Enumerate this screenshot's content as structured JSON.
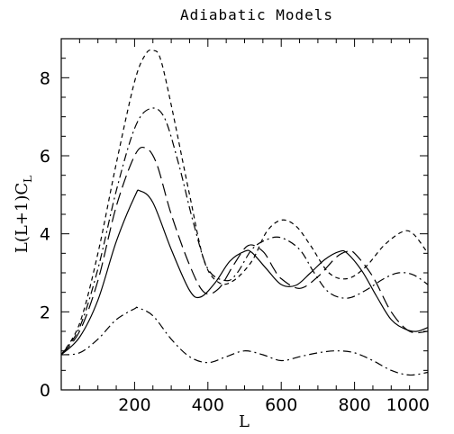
{
  "chart_data": {
    "type": "line",
    "title": "Adiabatic Models",
    "xlabel": "L",
    "ylabel": "L(L+1)C",
    "ylabel_sub": "L",
    "xlim": [
      0,
      1000
    ],
    "ylim": [
      0,
      9
    ],
    "xticks": [
      {
        "v": 200,
        "label": "200"
      },
      {
        "v": 400,
        "label": "400"
      },
      {
        "v": 600,
        "label": "600"
      },
      {
        "v": 800,
        "label": "800"
      },
      {
        "v": 1000,
        "label": "1000"
      }
    ],
    "yticks": [
      {
        "v": 0,
        "label": "0"
      },
      {
        "v": 2,
        "label": "2"
      },
      {
        "v": 4,
        "label": "4"
      },
      {
        "v": 6,
        "label": "6"
      },
      {
        "v": 8,
        "label": "8"
      }
    ],
    "grid": false,
    "legend": "none",
    "series": [
      {
        "dash": "solid",
        "x": [
          0,
          50,
          100,
          150,
          200,
          215,
          250,
          300,
          350,
          380,
          420,
          460,
          500,
          520,
          560,
          600,
          640,
          680,
          720,
          760,
          780,
          820,
          860,
          900,
          940,
          970,
          1000
        ],
        "y": [
          0.9,
          1.35,
          2.3,
          3.8,
          4.95,
          5.1,
          4.8,
          3.6,
          2.55,
          2.38,
          2.75,
          3.3,
          3.55,
          3.52,
          3.1,
          2.7,
          2.68,
          3.0,
          3.35,
          3.55,
          3.5,
          3.05,
          2.4,
          1.8,
          1.55,
          1.5,
          1.6
        ]
      },
      {
        "dash": "long-dash",
        "x": [
          0,
          50,
          100,
          150,
          200,
          230,
          260,
          300,
          350,
          390,
          430,
          470,
          510,
          550,
          580,
          600,
          650,
          700,
          750,
          780,
          800,
          850,
          900,
          950,
          1000
        ],
        "y": [
          0.9,
          1.5,
          2.8,
          4.7,
          6.0,
          6.2,
          5.8,
          4.5,
          3.2,
          2.5,
          2.6,
          3.2,
          3.7,
          3.55,
          3.1,
          2.85,
          2.6,
          2.9,
          3.4,
          3.55,
          3.5,
          2.9,
          2.0,
          1.5,
          1.5
        ]
      },
      {
        "dash": "dash-dot",
        "x": [
          0,
          50,
          100,
          150,
          200,
          240,
          280,
          320,
          360,
          400,
          450,
          480,
          520,
          560,
          600,
          650,
          690,
          730,
          780,
          830,
          880,
          920,
          960,
          1000
        ],
        "y": [
          0.9,
          1.6,
          3.1,
          5.1,
          6.7,
          7.2,
          7.0,
          5.8,
          4.3,
          3.1,
          2.8,
          3.0,
          3.6,
          3.85,
          3.9,
          3.6,
          3.0,
          2.5,
          2.35,
          2.55,
          2.85,
          3.0,
          2.95,
          2.7
        ]
      },
      {
        "dash": "short-dash",
        "x": [
          0,
          50,
          100,
          150,
          200,
          230,
          250,
          270,
          300,
          350,
          390,
          430,
          470,
          520,
          560,
          600,
          640,
          680,
          730,
          780,
          830,
          880,
          930,
          960,
          1000
        ],
        "y": [
          0.9,
          1.7,
          3.5,
          5.8,
          7.9,
          8.6,
          8.7,
          8.5,
          7.3,
          5.0,
          3.3,
          2.75,
          2.8,
          3.3,
          4.05,
          4.35,
          4.2,
          3.7,
          3.0,
          2.85,
          3.15,
          3.7,
          4.05,
          4.0,
          3.5
        ]
      },
      {
        "dash": "dash-dot",
        "x": [
          0,
          50,
          100,
          150,
          200,
          210,
          250,
          300,
          350,
          400,
          450,
          500,
          550,
          600,
          650,
          700,
          750,
          800,
          850,
          900,
          950,
          1000
        ],
        "y": [
          0.9,
          0.95,
          1.3,
          1.8,
          2.08,
          2.1,
          1.9,
          1.3,
          0.85,
          0.7,
          0.85,
          1.0,
          0.9,
          0.75,
          0.85,
          0.95,
          1.0,
          0.95,
          0.75,
          0.5,
          0.38,
          0.45
        ]
      }
    ]
  }
}
